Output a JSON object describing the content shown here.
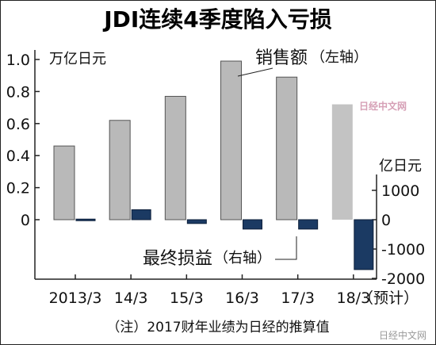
{
  "title": "JDI连续4季度陷入亏损",
  "colors": {
    "sales_bar": "#b9b9b9",
    "sales_bar_stroke": "#555555",
    "profit_bar": "#1b3a63",
    "axis": "#222222",
    "watermark": "#d6a0b6"
  },
  "left_axis": {
    "unit_label": "万亿日元",
    "ticks": [
      "1.0",
      "0.8",
      "0.6",
      "0.4",
      "0.2",
      "0"
    ]
  },
  "right_axis": {
    "unit_label": "亿日元",
    "ticks": [
      "1000",
      "0",
      "-1000",
      "-2000"
    ]
  },
  "sales_label": "销售额",
  "sales_label_note": "（左轴）",
  "profit_label": "最终损益",
  "profit_label_note": "（右轴）",
  "categories": [
    "2013/3",
    "14/3",
    "15/3",
    "16/3",
    "17/3",
    "18/3"
  ],
  "forecast_note": "（预计）",
  "footnote": "（注）2017财年业绩为日经的推算值",
  "watermark_text": "日经中文网",
  "weibo_watermark": "日经中文网",
  "chart_data": {
    "type": "bar",
    "title": "JDI连续4季度陷入亏损",
    "categories": [
      "2013/3",
      "14/3",
      "15/3",
      "16/3",
      "17/3",
      "18/3"
    ],
    "series": [
      {
        "name": "销售额",
        "axis": "left",
        "unit": "万亿日元",
        "values": [
          0.46,
          0.62,
          0.77,
          0.99,
          0.89,
          0.72
        ]
      },
      {
        "name": "最终损益",
        "axis": "right",
        "unit": "亿日元",
        "values": [
          20,
          340,
          -130,
          -320,
          -320,
          -1700
        ]
      }
    ],
    "y_left": {
      "label": "万亿日元",
      "ylim": [
        0,
        1.0
      ]
    },
    "y_right": {
      "label": "亿日元",
      "ylim": [
        -2000,
        1000
      ]
    },
    "grid": false,
    "legend": "inline labels"
  }
}
